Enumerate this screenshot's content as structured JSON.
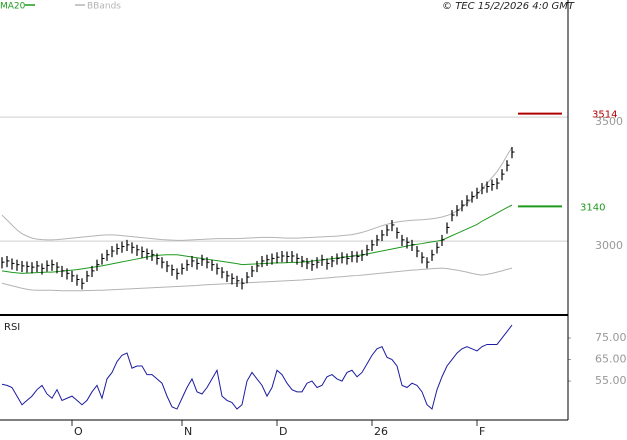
{
  "header": "© TEC 15/2/2026 4:0 GMT",
  "chart_data": [
    {
      "type": "ohlc",
      "ylim": [
        2702,
        3972
      ],
      "yticks": [
        3000,
        3500
      ],
      "grid": true,
      "levels": [
        {
          "value": 3514,
          "color": "#b00000"
        },
        {
          "value": 3140,
          "color": "#1e9a1e"
        }
      ],
      "high": [
        2935,
        2940,
        2930,
        2925,
        2920,
        2918,
        2915,
        2920,
        2910,
        2922,
        2925,
        2915,
        2900,
        2890,
        2880,
        2865,
        2850,
        2880,
        2900,
        2925,
        2950,
        2965,
        2980,
        2990,
        2998,
        3005,
        2995,
        2985,
        2978,
        2970,
        2965,
        2950,
        2935,
        2920,
        2905,
        2890,
        2910,
        2925,
        2940,
        2930,
        2945,
        2935,
        2925,
        2910,
        2895,
        2880,
        2870,
        2860,
        2850,
        2875,
        2900,
        2920,
        2940,
        2945,
        2950,
        2955,
        2960,
        2958,
        2960,
        2950,
        2940,
        2932,
        2925,
        2935,
        2945,
        2930,
        2940,
        2950,
        2955,
        2950,
        2960,
        2958,
        2965,
        2985,
        3005,
        3025,
        3045,
        3065,
        3085,
        3055,
        3025,
        3015,
        3005,
        2980,
        2955,
        2935,
        2965,
        2995,
        3025,
        3075,
        3125,
        3145,
        3165,
        3185,
        3200,
        3215,
        3234,
        3240,
        3248,
        3254,
        3290,
        3326,
        3379
      ],
      "low": [
        2890,
        2895,
        2885,
        2880,
        2875,
        2873,
        2870,
        2875,
        2865,
        2877,
        2880,
        2870,
        2855,
        2845,
        2835,
        2820,
        2805,
        2835,
        2855,
        2880,
        2905,
        2920,
        2935,
        2945,
        2953,
        2960,
        2950,
        2940,
        2933,
        2925,
        2920,
        2905,
        2890,
        2875,
        2860,
        2845,
        2865,
        2880,
        2895,
        2885,
        2900,
        2890,
        2880,
        2865,
        2850,
        2835,
        2825,
        2815,
        2805,
        2830,
        2855,
        2875,
        2895,
        2900,
        2905,
        2910,
        2915,
        2913,
        2915,
        2905,
        2895,
        2887,
        2880,
        2890,
        2900,
        2885,
        2895,
        2905,
        2910,
        2905,
        2915,
        2913,
        2920,
        2940,
        2960,
        2980,
        3000,
        3020,
        3040,
        3010,
        2980,
        2970,
        2960,
        2935,
        2910,
        2890,
        2920,
        2950,
        2980,
        3030,
        3080,
        3100,
        3120,
        3140,
        3155,
        3170,
        3189,
        3195,
        3203,
        3209,
        3245,
        3281,
        3334
      ],
      "close": [
        2915,
        2920,
        2910,
        2905,
        2900,
        2898,
        2895,
        2900,
        2890,
        2902,
        2905,
        2895,
        2880,
        2870,
        2860,
        2845,
        2830,
        2860,
        2880,
        2905,
        2930,
        2945,
        2960,
        2970,
        2978,
        2985,
        2975,
        2965,
        2958,
        2950,
        2945,
        2930,
        2915,
        2900,
        2885,
        2870,
        2890,
        2905,
        2920,
        2910,
        2925,
        2915,
        2905,
        2890,
        2875,
        2860,
        2850,
        2840,
        2830,
        2855,
        2880,
        2900,
        2920,
        2925,
        2930,
        2935,
        2940,
        2938,
        2940,
        2930,
        2920,
        2912,
        2905,
        2915,
        2925,
        2910,
        2920,
        2930,
        2935,
        2930,
        2940,
        2938,
        2945,
        2965,
        2985,
        3005,
        3025,
        3045,
        3065,
        3035,
        3005,
        2995,
        2985,
        2960,
        2935,
        2915,
        2945,
        2975,
        3005,
        3055,
        3105,
        3125,
        3145,
        3165,
        3180,
        3195,
        3214,
        3220,
        3228,
        3234,
        3270,
        3306,
        3359
      ],
      "series": [
        {
          "name": "MA20",
          "color": "#1e9a1e",
          "values": [
            2880,
            2877,
            2874,
            2872,
            2870,
            2871,
            2872,
            2873,
            2874,
            2875,
            2875,
            2877,
            2879,
            2881,
            2883,
            2885,
            2888,
            2891,
            2894,
            2897,
            2900,
            2904,
            2908,
            2912,
            2916,
            2920,
            2924,
            2928,
            2932,
            2936,
            2940,
            2942,
            2944,
            2945,
            2945,
            2945,
            2942,
            2939,
            2936,
            2933,
            2930,
            2927,
            2924,
            2921,
            2918,
            2915,
            2912,
            2909,
            2905,
            2906,
            2907,
            2908,
            2909,
            2910,
            2911,
            2912,
            2912,
            2913,
            2914,
            2914,
            2915,
            2917,
            2919,
            2922,
            2924,
            2927,
            2929,
            2932,
            2934,
            2937,
            2939,
            2942,
            2944,
            2948,
            2952,
            2956,
            2960,
            2964,
            2968,
            2972,
            2976,
            2980,
            2984,
            2987,
            2990,
            2994,
            2997,
            3000,
            3004,
            3013,
            3022,
            3031,
            3040,
            3049,
            3058,
            3067,
            3080,
            3091,
            3102,
            3113,
            3124,
            3135,
            3145
          ]
        },
        {
          "name": "BBands",
          "color": "#b4b4b4",
          "upper": [
            3105,
            3085,
            3065,
            3045,
            3030,
            3020,
            3012,
            3008,
            3006,
            3005,
            3005,
            3006,
            3008,
            3010,
            3012,
            3014,
            3016,
            3018,
            3020,
            3022,
            3024,
            3025,
            3025,
            3024,
            3022,
            3020,
            3018,
            3016,
            3014,
            3012,
            3010,
            3008,
            3006,
            3005,
            3004,
            3003,
            3003,
            3004,
            3005,
            3006,
            3007,
            3008,
            3009,
            3010,
            3010,
            3010,
            3010,
            3010,
            3011,
            3012,
            3013,
            3014,
            3015,
            3015,
            3015,
            3014,
            3013,
            3012,
            3012,
            3012,
            3013,
            3014,
            3015,
            3016,
            3017,
            3018,
            3019,
            3020,
            3022,
            3024,
            3026,
            3030,
            3035,
            3041,
            3048,
            3055,
            3062,
            3068,
            3073,
            3077,
            3080,
            3082,
            3084,
            3085,
            3086,
            3088,
            3090,
            3093,
            3097,
            3103,
            3110,
            3122,
            3136,
            3152,
            3170,
            3190,
            3210,
            3232,
            3256,
            3280,
            3310,
            3345,
            3379
          ],
          "lower": [
            2830,
            2825,
            2820,
            2815,
            2810,
            2806,
            2803,
            2802,
            2802,
            2802,
            2802,
            2801,
            2800,
            2800,
            2800,
            2800,
            2800,
            2801,
            2801,
            2802,
            2802,
            2803,
            2804,
            2805,
            2806,
            2807,
            2808,
            2809,
            2810,
            2811,
            2812,
            2813,
            2814,
            2815,
            2816,
            2817,
            2818,
            2819,
            2820,
            2821,
            2823,
            2824,
            2825,
            2826,
            2827,
            2828,
            2829,
            2830,
            2831,
            2832,
            2833,
            2834,
            2835,
            2836,
            2837,
            2838,
            2839,
            2840,
            2841,
            2842,
            2843,
            2845,
            2846,
            2848,
            2850,
            2851,
            2853,
            2855,
            2856,
            2858,
            2860,
            2861,
            2863,
            2865,
            2867,
            2869,
            2871,
            2873,
            2875,
            2877,
            2879,
            2881,
            2883,
            2884,
            2886,
            2887,
            2889,
            2890,
            2891,
            2889,
            2886,
            2883,
            2879,
            2875,
            2870,
            2866,
            2863,
            2866,
            2870,
            2875,
            2880,
            2886,
            2891
          ]
        }
      ]
    },
    {
      "type": "line",
      "title": "RSI",
      "ylim": [
        36.9,
        85.7
      ],
      "yticks": [
        {
          "value": 75,
          "label": "75.00"
        },
        {
          "value": 65,
          "label": "65.00"
        },
        {
          "value": 55,
          "label": "55.00"
        }
      ],
      "categories": [
        null,
        null,
        null,
        null,
        null,
        null,
        null,
        null,
        null,
        null,
        null,
        null,
        null,
        null,
        "O",
        null,
        null,
        null,
        null,
        null,
        null,
        null,
        null,
        null,
        null,
        null,
        null,
        null,
        null,
        null,
        null,
        null,
        null,
        null,
        null,
        null,
        "N",
        null,
        null,
        null,
        null,
        null,
        null,
        null,
        null,
        null,
        null,
        null,
        null,
        null,
        null,
        null,
        null,
        null,
        null,
        "D",
        null,
        null,
        null,
        null,
        null,
        null,
        null,
        null,
        null,
        null,
        null,
        null,
        null,
        null,
        null,
        null,
        null,
        null,
        "26",
        null,
        null,
        null,
        null,
        null,
        null,
        null,
        null,
        null,
        null,
        null,
        null,
        null,
        null,
        null,
        null,
        null,
        null,
        null,
        null,
        "F",
        null,
        null,
        null,
        null,
        null,
        null,
        null
      ],
      "series": [
        {
          "name": "RSI",
          "color": "#1c1ca0",
          "values": [
            53.5,
            53,
            52,
            48,
            44,
            46,
            48,
            51,
            53,
            49,
            47,
            51,
            46,
            47,
            48,
            46,
            44,
            46,
            50,
            53,
            47,
            56,
            59,
            64,
            67,
            68,
            61,
            62,
            62,
            58,
            58,
            56,
            54,
            48,
            43,
            42,
            47,
            52,
            56,
            50,
            49,
            52,
            56,
            60,
            48,
            46,
            45,
            42,
            44,
            55,
            59,
            56,
            53,
            48,
            52,
            60,
            58,
            54,
            51,
            50,
            50,
            54,
            55,
            52,
            53,
            57,
            58,
            56,
            55,
            59,
            60,
            57,
            59,
            63,
            67,
            70,
            71,
            66,
            65,
            62,
            53,
            52,
            54,
            53,
            50,
            44,
            42,
            51,
            57,
            62,
            65,
            68,
            70,
            71,
            70,
            69,
            71,
            72,
            72,
            72,
            75,
            78,
            81
          ]
        }
      ]
    }
  ]
}
